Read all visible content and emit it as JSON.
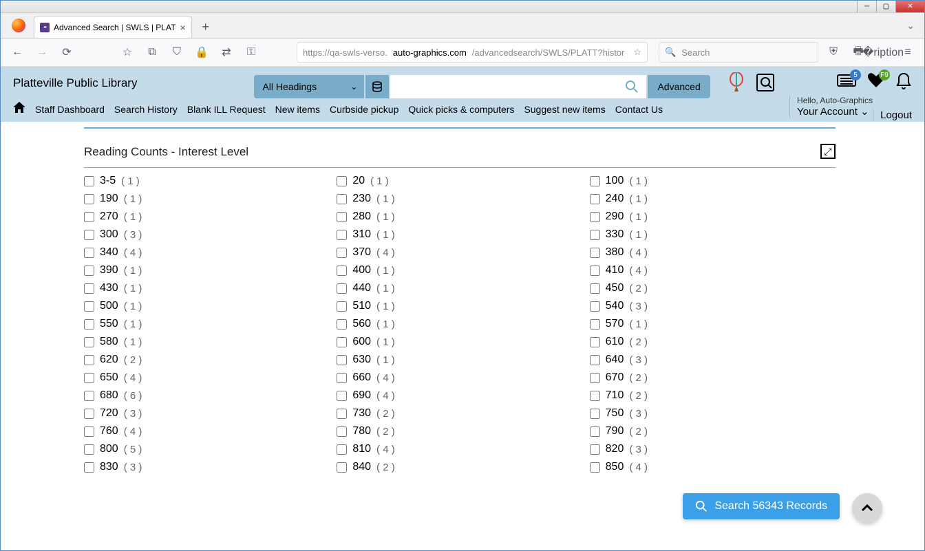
{
  "window": {
    "tab_title": "Advanced Search | SWLS | PLAT",
    "url_prefix": "https://qa-swls-verso.",
    "url_domain": "auto-graphics.com",
    "url_path": "/advancedsearch/SWLS/PLATT?histor",
    "nav_search_placeholder": "Search"
  },
  "header": {
    "library_name": "Platteville Public Library",
    "dropdown_label": "All Headings",
    "advanced_label": "Advanced",
    "hello_text": "Hello, Auto-Graphics",
    "your_account": "Your Account",
    "logout": "Logout",
    "badge_list": "5",
    "badge_fav": "F9"
  },
  "menu": {
    "items": [
      "Staff Dashboard",
      "Search History",
      "Blank ILL Request",
      "New items",
      "Curbside pickup",
      "Quick picks & computers",
      "Suggest new items",
      "Contact Us"
    ]
  },
  "section": {
    "title": "Reading Counts - Interest Level"
  },
  "facets": [
    {
      "label": "3-5",
      "count": "1"
    },
    {
      "label": "20",
      "count": "1"
    },
    {
      "label": "100",
      "count": "1"
    },
    {
      "label": "190",
      "count": "1"
    },
    {
      "label": "230",
      "count": "1"
    },
    {
      "label": "240",
      "count": "1"
    },
    {
      "label": "270",
      "count": "1"
    },
    {
      "label": "280",
      "count": "1"
    },
    {
      "label": "290",
      "count": "1"
    },
    {
      "label": "300",
      "count": "3"
    },
    {
      "label": "310",
      "count": "1"
    },
    {
      "label": "330",
      "count": "1"
    },
    {
      "label": "340",
      "count": "4"
    },
    {
      "label": "370",
      "count": "4"
    },
    {
      "label": "380",
      "count": "4"
    },
    {
      "label": "390",
      "count": "1"
    },
    {
      "label": "400",
      "count": "1"
    },
    {
      "label": "410",
      "count": "4"
    },
    {
      "label": "430",
      "count": "1"
    },
    {
      "label": "440",
      "count": "1"
    },
    {
      "label": "450",
      "count": "2"
    },
    {
      "label": "500",
      "count": "1"
    },
    {
      "label": "510",
      "count": "1"
    },
    {
      "label": "540",
      "count": "3"
    },
    {
      "label": "550",
      "count": "1"
    },
    {
      "label": "560",
      "count": "1"
    },
    {
      "label": "570",
      "count": "1"
    },
    {
      "label": "580",
      "count": "1"
    },
    {
      "label": "600",
      "count": "1"
    },
    {
      "label": "610",
      "count": "2"
    },
    {
      "label": "620",
      "count": "2"
    },
    {
      "label": "630",
      "count": "1"
    },
    {
      "label": "640",
      "count": "3"
    },
    {
      "label": "650",
      "count": "4"
    },
    {
      "label": "660",
      "count": "4"
    },
    {
      "label": "670",
      "count": "2"
    },
    {
      "label": "680",
      "count": "6"
    },
    {
      "label": "690",
      "count": "4"
    },
    {
      "label": "710",
      "count": "2"
    },
    {
      "label": "720",
      "count": "3"
    },
    {
      "label": "730",
      "count": "2"
    },
    {
      "label": "750",
      "count": "3"
    },
    {
      "label": "760",
      "count": "4"
    },
    {
      "label": "780",
      "count": "2"
    },
    {
      "label": "790",
      "count": "2"
    },
    {
      "label": "800",
      "count": "5"
    },
    {
      "label": "810",
      "count": "4"
    },
    {
      "label": "820",
      "count": "3"
    },
    {
      "label": "830",
      "count": "3"
    },
    {
      "label": "840",
      "count": "2"
    },
    {
      "label": "850",
      "count": "4"
    }
  ],
  "float": {
    "search_records": "Search 56343 Records"
  },
  "colors": {
    "header_bg": "#c4dcea",
    "accent_blue": "#79acc8",
    "divider_blue": "#5db3e6",
    "action_blue": "#3ca0e8"
  }
}
